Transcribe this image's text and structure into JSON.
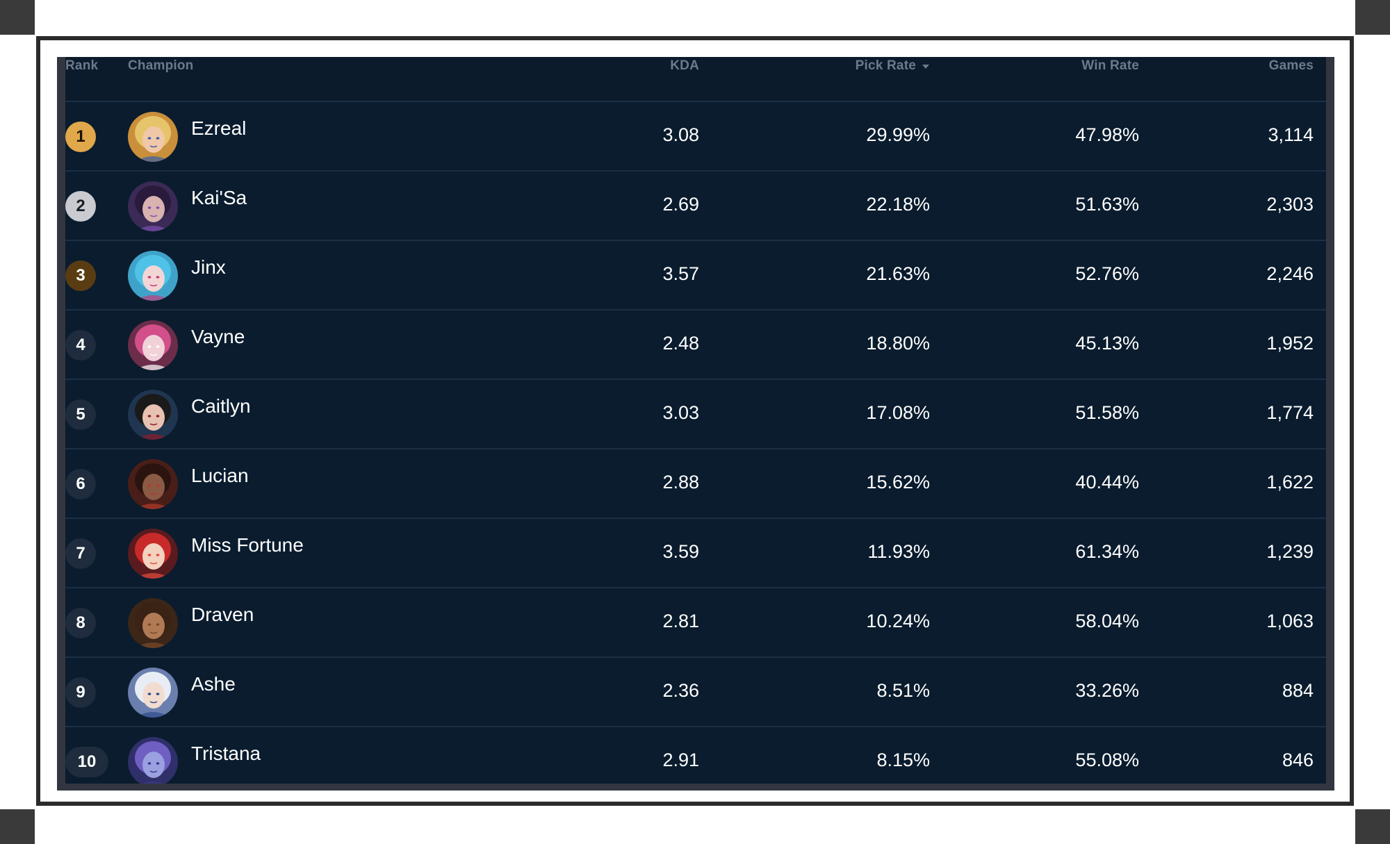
{
  "columns": {
    "rank": "Rank",
    "champion": "Champion",
    "kda": "KDA",
    "pick_rate": "Pick Rate",
    "win_rate": "Win Rate",
    "games": "Games"
  },
  "sort": {
    "column": "pick_rate",
    "direction": "descending",
    "icon": "caret-down-icon"
  },
  "colors": {
    "table_bg": "#0a1c2e",
    "rank_1": "#e0a84a",
    "rank_2": "#c9cbd0",
    "rank_3": "#5a3c12",
    "rank_default": "#1e2c3d"
  },
  "rows": [
    {
      "rank": "1",
      "champion": "Ezreal",
      "kda": "3.08",
      "pick_rate": "29.99%",
      "win_rate": "47.98%",
      "games": "3,114"
    },
    {
      "rank": "2",
      "champion": "Kai'Sa",
      "kda": "2.69",
      "pick_rate": "22.18%",
      "win_rate": "51.63%",
      "games": "2,303"
    },
    {
      "rank": "3",
      "champion": "Jinx",
      "kda": "3.57",
      "pick_rate": "21.63%",
      "win_rate": "52.76%",
      "games": "2,246"
    },
    {
      "rank": "4",
      "champion": "Vayne",
      "kda": "2.48",
      "pick_rate": "18.80%",
      "win_rate": "45.13%",
      "games": "1,952"
    },
    {
      "rank": "5",
      "champion": "Caitlyn",
      "kda": "3.03",
      "pick_rate": "17.08%",
      "win_rate": "51.58%",
      "games": "1,774"
    },
    {
      "rank": "6",
      "champion": "Lucian",
      "kda": "2.88",
      "pick_rate": "15.62%",
      "win_rate": "40.44%",
      "games": "1,622"
    },
    {
      "rank": "7",
      "champion": "Miss Fortune",
      "kda": "3.59",
      "pick_rate": "11.93%",
      "win_rate": "61.34%",
      "games": "1,239"
    },
    {
      "rank": "8",
      "champion": "Draven",
      "kda": "2.81",
      "pick_rate": "10.24%",
      "win_rate": "58.04%",
      "games": "1,063"
    },
    {
      "rank": "9",
      "champion": "Ashe",
      "kda": "2.36",
      "pick_rate": "8.51%",
      "win_rate": "33.26%",
      "games": "884"
    },
    {
      "rank": "10",
      "champion": "Tristana",
      "kda": "2.91",
      "pick_rate": "8.15%",
      "win_rate": "55.08%",
      "games": "846"
    }
  ]
}
